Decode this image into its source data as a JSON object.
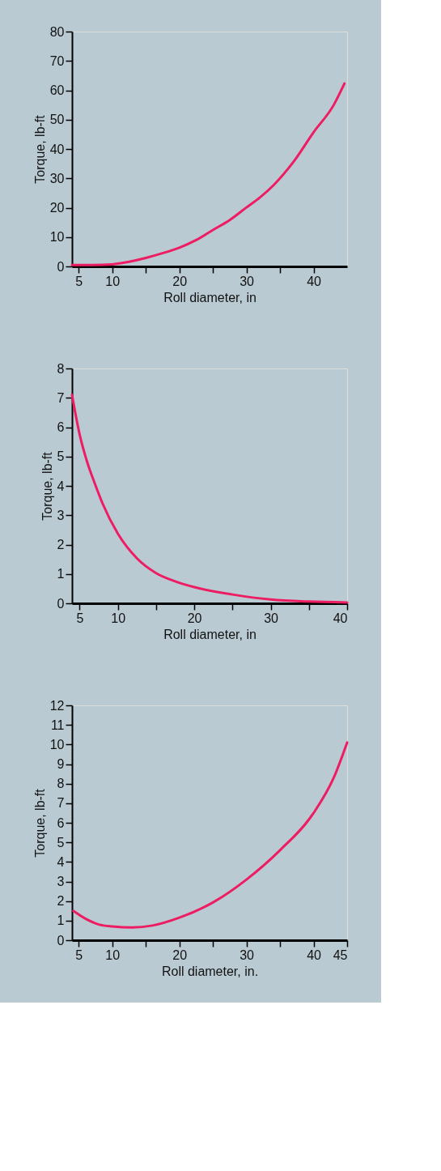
{
  "chart_data": [
    {
      "type": "line",
      "xlabel": "Roll diameter, in",
      "ylabel": "Torque, lb-ft",
      "x": [
        4,
        5,
        7,
        10,
        12.5,
        15,
        17.5,
        20,
        22.5,
        25,
        27.5,
        30,
        32,
        34,
        37,
        40,
        43,
        44.6
      ],
      "series": [
        {
          "color": "#ee1c62",
          "values": [
            0.5,
            0.5,
            0.5,
            0.7,
            1.6,
            2.9,
            4.5,
            6.4,
            9,
            12.4,
            15.8,
            20.1,
            23.5,
            27.6,
            35.6,
            45.7,
            55,
            62.3
          ]
        }
      ],
      "xlim": [
        4,
        45
      ],
      "xticks": [
        5,
        10,
        {
          "value": 15,
          "label": null
        },
        20,
        {
          "value": 25,
          "label": null
        },
        30,
        {
          "value": 35,
          "label": null
        },
        40
      ],
      "ylim": [
        0,
        80
      ],
      "yticks": [
        0,
        10,
        20,
        30,
        40,
        50,
        60,
        70,
        80
      ],
      "grid": false
    },
    {
      "type": "line",
      "xlabel": "Roll diameter, in",
      "ylabel": "Torque, lb-ft",
      "x": [
        4,
        5,
        6,
        7,
        8,
        10,
        12.5,
        15,
        17.5,
        20,
        25,
        30,
        35,
        40
      ],
      "series": [
        {
          "color": "#ee1c62",
          "values": [
            7.1,
            5.75,
            4.8,
            4.07,
            3.4,
            2.37,
            1.53,
            1.03,
            0.75,
            0.55,
            0.3,
            0.13,
            0.06,
            0.03
          ]
        }
      ],
      "xlim": [
        4,
        40
      ],
      "xticks": [
        5,
        10,
        {
          "value": 15,
          "label": null
        },
        20,
        {
          "value": 25,
          "label": null
        },
        30,
        {
          "value": 35,
          "label": null
        },
        40
      ],
      "ylim": [
        0,
        8
      ],
      "yticks": [
        0,
        1,
        2,
        3,
        4,
        5,
        6,
        7,
        8
      ],
      "grid": false
    },
    {
      "type": "line",
      "xlabel": "Roll diameter, in.",
      "ylabel": "Torque, lb-ft",
      "x": [
        4.2,
        6,
        8,
        10,
        13,
        16,
        20,
        25,
        30,
        35,
        40,
        43,
        45
      ],
      "series": [
        {
          "color": "#ee1c62",
          "values": [
            1.5,
            1.1,
            0.8,
            0.7,
            0.65,
            0.75,
            1.15,
            1.93,
            3.1,
            4.6,
            6.5,
            8.3,
            10.1
          ]
        }
      ],
      "xlim": [
        4,
        45
      ],
      "xticks": [
        5,
        10,
        {
          "value": 15,
          "label": null
        },
        20,
        {
          "value": 25,
          "label": null
        },
        30,
        {
          "value": 35,
          "label": null
        },
        40,
        45
      ],
      "ylim": [
        0,
        12
      ],
      "yticks": [
        0,
        1,
        2,
        3,
        4,
        5,
        6,
        7,
        8,
        9,
        10,
        11,
        12
      ],
      "grid": false
    }
  ]
}
